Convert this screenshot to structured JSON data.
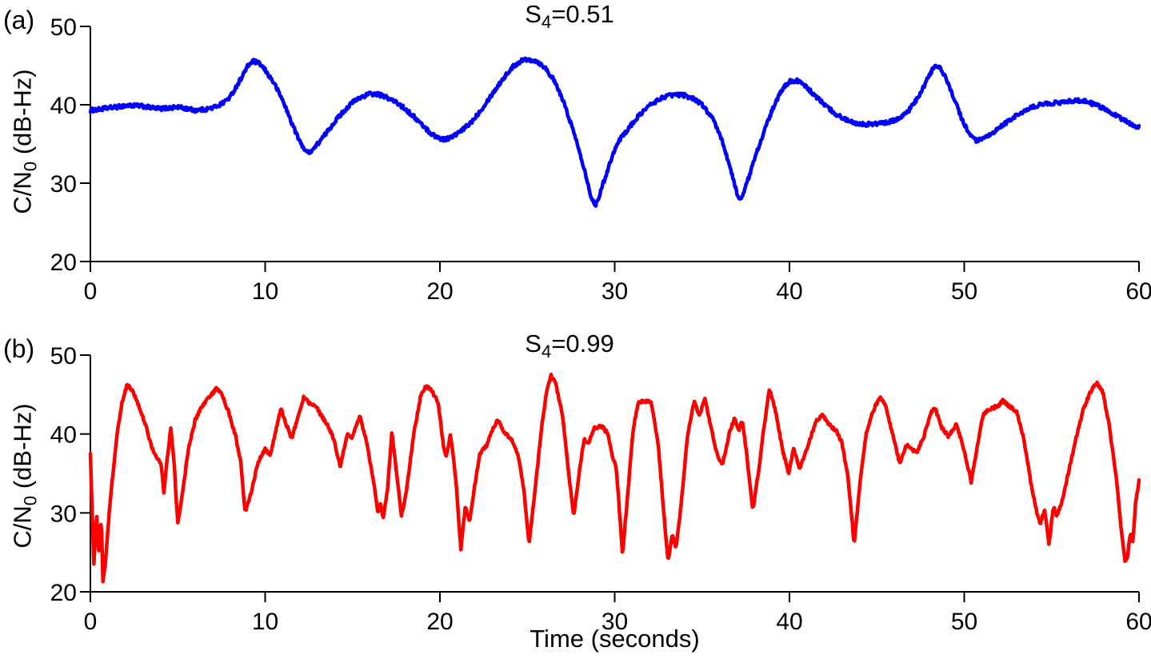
{
  "figure": {
    "panel_a_label": "(a)",
    "panel_b_label": "(b)",
    "xlabel": "Time (seconds)",
    "background": "#ffffff",
    "text_color": "#000000"
  },
  "chart_data": [
    {
      "type": "line",
      "panel": "a",
      "title": {
        "base": "S",
        "sub": "4",
        "rest": "=0.51"
      },
      "title_plain": "S4=0.51",
      "ylabel": {
        "base": "C/N",
        "sub": "0",
        "rest": " (dB-Hz)"
      },
      "ylabel_plain": "C/N0 (dB-Hz)",
      "color": "#0000ff",
      "xlim": [
        0,
        60
      ],
      "ylim": [
        20,
        50
      ],
      "xticks": [
        0,
        10,
        20,
        30,
        40,
        50,
        60
      ],
      "yticks": [
        20,
        30,
        40,
        50
      ],
      "grid": false,
      "legend": "none",
      "noise_db": 0.25,
      "points": [
        [
          0,
          39.3
        ],
        [
          0.5,
          39.4
        ],
        [
          1,
          39.6
        ],
        [
          1.5,
          39.7
        ],
        [
          2,
          39.9
        ],
        [
          2.5,
          39.9
        ],
        [
          3,
          39.8
        ],
        [
          3.5,
          39.6
        ],
        [
          4,
          39.5
        ],
        [
          4.5,
          39.6
        ],
        [
          5,
          39.7
        ],
        [
          5.5,
          39.5
        ],
        [
          6,
          39.3
        ],
        [
          6.5,
          39.4
        ],
        [
          7,
          39.6
        ],
        [
          7.5,
          40.1
        ],
        [
          8,
          41.0
        ],
        [
          8.5,
          42.9
        ],
        [
          9,
          44.9
        ],
        [
          9.3,
          45.6
        ],
        [
          9.7,
          45.2
        ],
        [
          10,
          44.4
        ],
        [
          10.5,
          42.8
        ],
        [
          11,
          40.6
        ],
        [
          11.5,
          37.8
        ],
        [
          12,
          35.2
        ],
        [
          12.4,
          33.9
        ],
        [
          12.7,
          34.2
        ],
        [
          13,
          35.0
        ],
        [
          13.5,
          36.4
        ],
        [
          14,
          37.9
        ],
        [
          14.5,
          39.2
        ],
        [
          15,
          40.3
        ],
        [
          15.5,
          41.0
        ],
        [
          16,
          41.4
        ],
        [
          16.5,
          41.3
        ],
        [
          17,
          40.9
        ],
        [
          17.5,
          40.3
        ],
        [
          18,
          39.5
        ],
        [
          18.5,
          38.5
        ],
        [
          19,
          37.4
        ],
        [
          19.5,
          36.3
        ],
        [
          20,
          35.7
        ],
        [
          20.3,
          35.6
        ],
        [
          20.7,
          35.9
        ],
        [
          21.2,
          36.6
        ],
        [
          21.8,
          37.8
        ],
        [
          22.4,
          39.5
        ],
        [
          23,
          41.4
        ],
        [
          23.6,
          43.3
        ],
        [
          24.2,
          44.9
        ],
        [
          24.7,
          45.7
        ],
        [
          25.1,
          45.8
        ],
        [
          25.5,
          45.6
        ],
        [
          26,
          44.8
        ],
        [
          26.5,
          43.2
        ],
        [
          27,
          40.8
        ],
        [
          27.5,
          37.6
        ],
        [
          28,
          34.0
        ],
        [
          28.4,
          30.6
        ],
        [
          28.7,
          27.8
        ],
        [
          28.9,
          27.2
        ],
        [
          29.1,
          28.3
        ],
        [
          29.5,
          31.0
        ],
        [
          29.9,
          33.8
        ],
        [
          30.3,
          35.6
        ],
        [
          30.9,
          37.3
        ],
        [
          31.5,
          38.9
        ],
        [
          32.1,
          40.1
        ],
        [
          32.8,
          41.0
        ],
        [
          33.4,
          41.3
        ],
        [
          34,
          41.2
        ],
        [
          34.6,
          40.7
        ],
        [
          35.1,
          39.8
        ],
        [
          35.6,
          38.2
        ],
        [
          36.1,
          35.7
        ],
        [
          36.5,
          32.8
        ],
        [
          36.9,
          29.5
        ],
        [
          37.1,
          27.9
        ],
        [
          37.35,
          28.6
        ],
        [
          37.7,
          30.9
        ],
        [
          38.1,
          33.8
        ],
        [
          38.6,
          36.9
        ],
        [
          39.1,
          39.8
        ],
        [
          39.6,
          42.0
        ],
        [
          40,
          43.0
        ],
        [
          40.4,
          43.1
        ],
        [
          40.9,
          42.4
        ],
        [
          41.4,
          41.3
        ],
        [
          42,
          40.0
        ],
        [
          42.6,
          38.9
        ],
        [
          43.2,
          38.1
        ],
        [
          43.8,
          37.7
        ],
        [
          44.4,
          37.5
        ],
        [
          45,
          37.6
        ],
        [
          45.6,
          37.7
        ],
        [
          46.2,
          38.2
        ],
        [
          46.8,
          39.2
        ],
        [
          47.4,
          41.0
        ],
        [
          47.9,
          43.3
        ],
        [
          48.3,
          45.0
        ],
        [
          48.6,
          44.7
        ],
        [
          49,
          43.2
        ],
        [
          49.4,
          40.9
        ],
        [
          49.9,
          38.0
        ],
        [
          50.3,
          36.2
        ],
        [
          50.7,
          35.4
        ],
        [
          51.1,
          35.6
        ],
        [
          51.6,
          36.3
        ],
        [
          52.2,
          37.4
        ],
        [
          52.9,
          38.5
        ],
        [
          53.6,
          39.4
        ],
        [
          54.3,
          40.0
        ],
        [
          55,
          40.2
        ],
        [
          55.7,
          40.3
        ],
        [
          56.4,
          40.6
        ],
        [
          57,
          40.4
        ],
        [
          57.6,
          39.9
        ],
        [
          58.2,
          39.3
        ],
        [
          58.8,
          38.5
        ],
        [
          59.4,
          37.7
        ],
        [
          60,
          37.1
        ]
      ]
    },
    {
      "type": "line",
      "panel": "b",
      "title": {
        "base": "S",
        "sub": "4",
        "rest": "=0.99"
      },
      "title_plain": "S4=0.99",
      "ylabel": {
        "base": "C/N",
        "sub": "0",
        "rest": " (dB-Hz)"
      },
      "ylabel_plain": "C/N0 (dB-Hz)",
      "color": "#ff0000",
      "xlim": [
        0,
        60
      ],
      "ylim": [
        20,
        50
      ],
      "xticks": [
        0,
        10,
        20,
        30,
        40,
        50,
        60
      ],
      "yticks": [
        20,
        30,
        40,
        50
      ],
      "grid": false,
      "legend": "none",
      "noise_db": 0.2,
      "points": [
        [
          0,
          37.5
        ],
        [
          0.08,
          32.0
        ],
        [
          0.2,
          23.6
        ],
        [
          0.35,
          29.8
        ],
        [
          0.5,
          24.5
        ],
        [
          0.62,
          29.3
        ],
        [
          0.72,
          21.4
        ],
        [
          0.85,
          23.5
        ],
        [
          1.0,
          28.0
        ],
        [
          1.2,
          33.0
        ],
        [
          1.5,
          39.5
        ],
        [
          1.8,
          44.0
        ],
        [
          2.1,
          46.2
        ],
        [
          2.4,
          45.5
        ],
        [
          2.8,
          43.4
        ],
        [
          3.2,
          40.8
        ],
        [
          3.5,
          38.4
        ],
        [
          3.8,
          37.0
        ],
        [
          4.05,
          36.2
        ],
        [
          4.2,
          32.6
        ],
        [
          4.4,
          37.0
        ],
        [
          4.6,
          40.7
        ],
        [
          4.8,
          36.0
        ],
        [
          5.0,
          28.6
        ],
        [
          5.3,
          33.0
        ],
        [
          5.6,
          38.0
        ],
        [
          6.0,
          41.8
        ],
        [
          6.4,
          43.6
        ],
        [
          6.8,
          44.6
        ],
        [
          7.2,
          45.8
        ],
        [
          7.5,
          45.2
        ],
        [
          7.9,
          42.8
        ],
        [
          8.3,
          39.8
        ],
        [
          8.6,
          36.5
        ],
        [
          8.85,
          30.0
        ],
        [
          9.2,
          32.5
        ],
        [
          9.6,
          36.5
        ],
        [
          10.0,
          38.1
        ],
        [
          10.3,
          37.3
        ],
        [
          10.9,
          43.3
        ],
        [
          11.5,
          39.3
        ],
        [
          12.2,
          44.6
        ],
        [
          12.6,
          43.8
        ],
        [
          12.9,
          43.5
        ],
        [
          13.6,
          41.0
        ],
        [
          13.9,
          39.5
        ],
        [
          14.3,
          35.9
        ],
        [
          14.7,
          40.0
        ],
        [
          15.0,
          39.6
        ],
        [
          15.4,
          42.3
        ],
        [
          15.8,
          39.0
        ],
        [
          16.2,
          34.0
        ],
        [
          16.45,
          30.1
        ],
        [
          16.6,
          31.2
        ],
        [
          16.75,
          29.2
        ],
        [
          17.0,
          33.0
        ],
        [
          17.25,
          40.3
        ],
        [
          17.5,
          35.5
        ],
        [
          17.8,
          29.6
        ],
        [
          18.1,
          33.0
        ],
        [
          18.5,
          40.0
        ],
        [
          18.9,
          44.8
        ],
        [
          19.2,
          46.0
        ],
        [
          19.5,
          45.6
        ],
        [
          19.9,
          44.0
        ],
        [
          20.2,
          38.5
        ],
        [
          20.35,
          37.0
        ],
        [
          20.6,
          40.0
        ],
        [
          20.9,
          34.5
        ],
        [
          21.2,
          25.4
        ],
        [
          21.45,
          30.8
        ],
        [
          21.7,
          28.9
        ],
        [
          22.0,
          33.6
        ],
        [
          22.3,
          37.6
        ],
        [
          22.7,
          38.6
        ],
        [
          23.0,
          40.5
        ],
        [
          23.3,
          41.8
        ],
        [
          23.7,
          40.2
        ],
        [
          24.1,
          39.3
        ],
        [
          24.5,
          37.0
        ],
        [
          24.8,
          33.0
        ],
        [
          25.1,
          26.1
        ],
        [
          25.45,
          33.0
        ],
        [
          25.8,
          40.5
        ],
        [
          26.1,
          45.3
        ],
        [
          26.35,
          47.4
        ],
        [
          26.6,
          46.6
        ],
        [
          27.0,
          42.6
        ],
        [
          27.35,
          35.5
        ],
        [
          27.65,
          29.6
        ],
        [
          27.95,
          34.8
        ],
        [
          28.25,
          39.3
        ],
        [
          28.5,
          38.7
        ],
        [
          28.8,
          40.7
        ],
        [
          29.2,
          41.1
        ],
        [
          29.6,
          40.1
        ],
        [
          29.9,
          37.0
        ],
        [
          30.1,
          35.5
        ],
        [
          30.45,
          24.9
        ],
        [
          30.75,
          32.5
        ],
        [
          31.05,
          40.5
        ],
        [
          31.35,
          44.0
        ],
        [
          31.7,
          44.2
        ],
        [
          32.1,
          44.0
        ],
        [
          32.5,
          38.5
        ],
        [
          32.85,
          29.0
        ],
        [
          33.05,
          23.9
        ],
        [
          33.3,
          27.4
        ],
        [
          33.5,
          25.4
        ],
        [
          33.8,
          31.0
        ],
        [
          34.15,
          39.5
        ],
        [
          34.55,
          44.2
        ],
        [
          34.85,
          42.4
        ],
        [
          35.15,
          44.5
        ],
        [
          35.55,
          40.5
        ],
        [
          35.85,
          37.5
        ],
        [
          36.15,
          36.0
        ],
        [
          36.55,
          40.0
        ],
        [
          36.85,
          42.0
        ],
        [
          37.1,
          40.5
        ],
        [
          37.3,
          41.6
        ],
        [
          37.55,
          37.5
        ],
        [
          37.9,
          30.3
        ],
        [
          38.25,
          35.5
        ],
        [
          38.55,
          41.0
        ],
        [
          38.85,
          45.7
        ],
        [
          39.2,
          43.0
        ],
        [
          39.6,
          38.0
        ],
        [
          39.95,
          35.1
        ],
        [
          40.25,
          38.2
        ],
        [
          40.55,
          35.6
        ],
        [
          40.8,
          36.8
        ],
        [
          41.1,
          38.8
        ],
        [
          41.5,
          41.5
        ],
        [
          41.9,
          42.4
        ],
        [
          42.3,
          41.2
        ],
        [
          42.7,
          40.3
        ],
        [
          43.0,
          38.9
        ],
        [
          43.35,
          34.5
        ],
        [
          43.7,
          26.1
        ],
        [
          44.05,
          34.0
        ],
        [
          44.4,
          40.2
        ],
        [
          44.8,
          43.0
        ],
        [
          45.2,
          44.8
        ],
        [
          45.5,
          43.5
        ],
        [
          45.9,
          40.0
        ],
        [
          46.3,
          36.3
        ],
        [
          46.7,
          38.6
        ],
        [
          47.0,
          38.0
        ],
        [
          47.3,
          37.6
        ],
        [
          47.7,
          39.8
        ],
        [
          48.1,
          42.8
        ],
        [
          48.35,
          43.2
        ],
        [
          48.7,
          40.8
        ],
        [
          49.1,
          39.7
        ],
        [
          49.55,
          41.2
        ],
        [
          50.0,
          38.0
        ],
        [
          50.4,
          33.9
        ],
        [
          50.75,
          38.5
        ],
        [
          51.1,
          42.6
        ],
        [
          51.5,
          43.2
        ],
        [
          51.9,
          43.5
        ],
        [
          52.2,
          44.2
        ],
        [
          52.6,
          43.5
        ],
        [
          53.0,
          42.8
        ],
        [
          53.4,
          39.5
        ],
        [
          53.8,
          34.0
        ],
        [
          54.1,
          30.5
        ],
        [
          54.35,
          28.7
        ],
        [
          54.6,
          30.4
        ],
        [
          54.85,
          26.0
        ],
        [
          55.1,
          30.8
        ],
        [
          55.3,
          29.7
        ],
        [
          55.6,
          31.5
        ],
        [
          56.0,
          35.5
        ],
        [
          56.4,
          39.5
        ],
        [
          56.8,
          43.0
        ],
        [
          57.2,
          45.3
        ],
        [
          57.6,
          46.5
        ],
        [
          57.95,
          45.2
        ],
        [
          58.3,
          41.0
        ],
        [
          58.7,
          34.5
        ],
        [
          59.0,
          27.5
        ],
        [
          59.2,
          24.0
        ],
        [
          59.35,
          24.5
        ],
        [
          59.5,
          27.5
        ],
        [
          59.65,
          26.5
        ],
        [
          59.8,
          31.0
        ],
        [
          60,
          34.2
        ]
      ]
    }
  ]
}
